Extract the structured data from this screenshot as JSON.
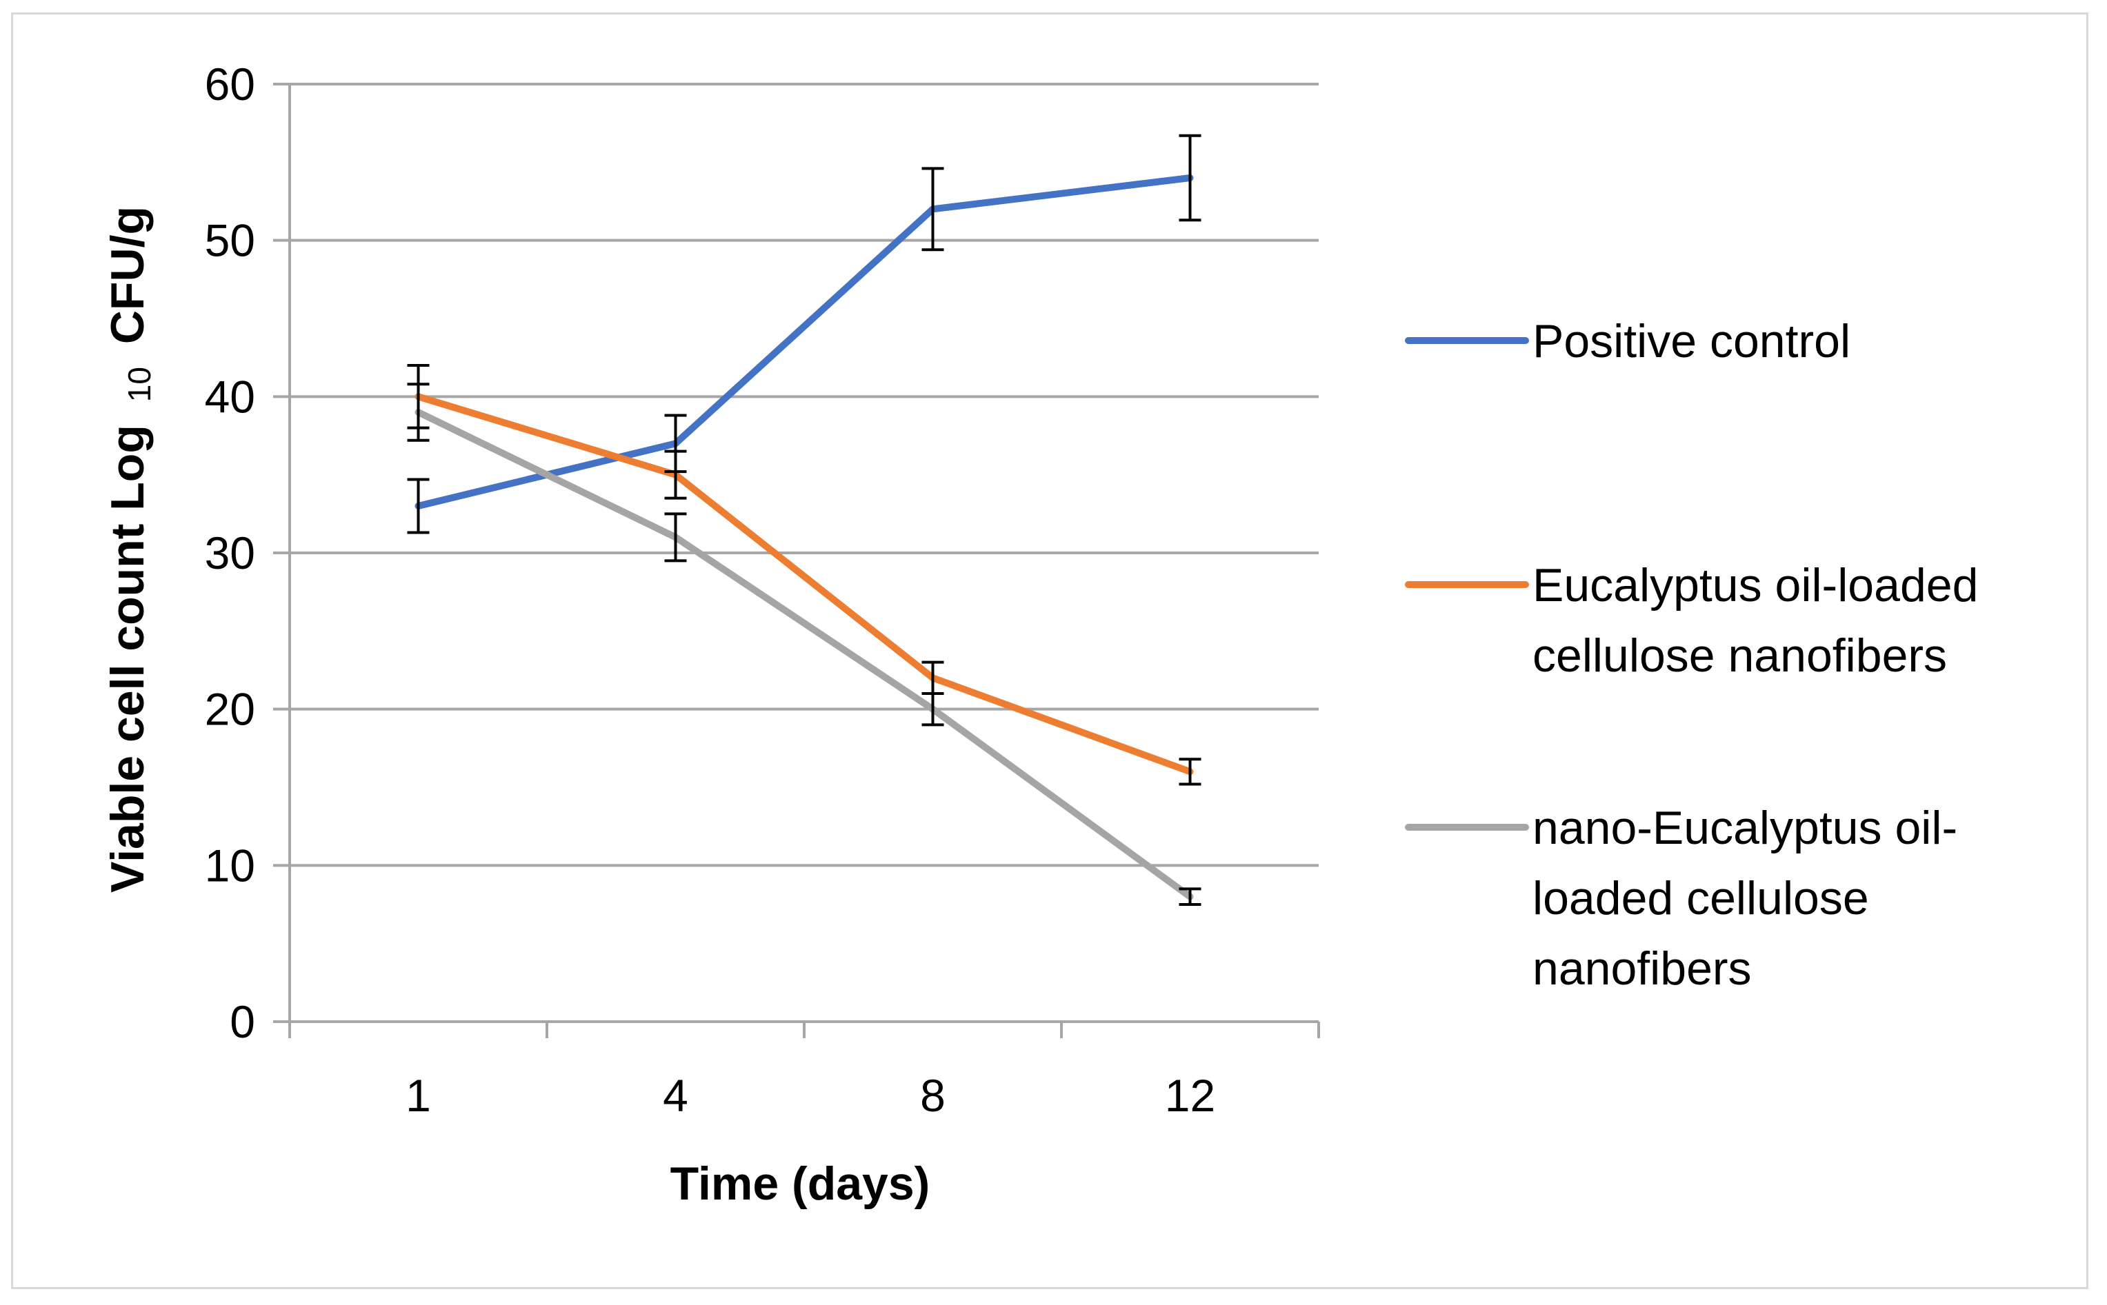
{
  "chart_data": {
    "type": "line",
    "title": "",
    "xlabel": "Time (days)",
    "ylabel": {
      "prefix": "Viable cell count Log",
      "subscript": "10",
      "suffix": "CFU/g"
    },
    "categories": [
      "1",
      "4",
      "8",
      "12"
    ],
    "ylim": [
      0,
      60
    ],
    "yticks": [
      0,
      10,
      20,
      30,
      40,
      50,
      60
    ],
    "grid": true,
    "legend_position": "right",
    "series": [
      {
        "name": "Positive control",
        "legend_lines": [
          "Positive control"
        ],
        "color": "#4472c4",
        "values": [
          33,
          37,
          52,
          54
        ],
        "errors": [
          1.7,
          1.8,
          2.6,
          2.7
        ]
      },
      {
        "name": "Eucalyptus oil-loaded cellulose nanofibers",
        "legend_lines": [
          "Eucalyptus oil-loaded",
          "cellulose nanofibers"
        ],
        "color": "#ed7d31",
        "values": [
          40,
          35,
          22,
          16
        ],
        "errors": [
          2.0,
          1.5,
          1.0,
          0.8
        ]
      },
      {
        "name": "nano-Eucalyptus oil-loaded cellulose nanofibers",
        "legend_lines": [
          "nano-Eucalyptus oil-",
          "loaded cellulose",
          "nanofibers"
        ],
        "color": "#a5a5a5",
        "values": [
          39,
          31,
          20,
          8
        ],
        "errors": [
          1.8,
          1.5,
          1.0,
          0.5
        ]
      }
    ]
  }
}
